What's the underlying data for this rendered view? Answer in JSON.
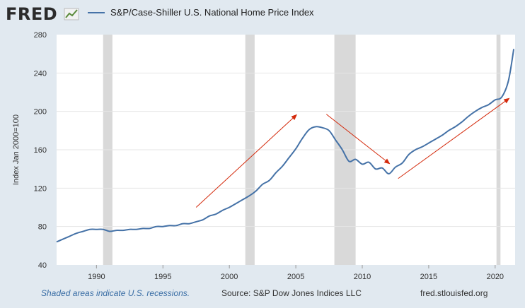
{
  "header": {
    "logo_text": "FRED",
    "legend_label": "S&P/Case-Shiller U.S. National Home Price Index"
  },
  "footer": {
    "recession_note": "Shaded areas indicate U.S. recessions.",
    "source": "Source: S&P Dow Jones Indices LLC",
    "site": "fred.stlouisfed.org"
  },
  "colors": {
    "series": "#4572a7",
    "recession": "#d9d9d9",
    "arrow": "#d42a0c",
    "plot_bg": "#ffffff",
    "page_bg": "#e1e9f0"
  },
  "chart_data": {
    "type": "line",
    "title": "",
    "xlabel": "",
    "ylabel": "Index Jan 2000=100",
    "xlim": [
      1987.0,
      2021.5
    ],
    "ylim": [
      40,
      280
    ],
    "xticks": [
      1990,
      1995,
      2000,
      2005,
      2010,
      2015,
      2020
    ],
    "yticks": [
      40,
      80,
      120,
      160,
      200,
      240,
      280
    ],
    "grid": "horizontal",
    "legend": "top",
    "recessions": [
      [
        1990.5,
        1991.2
      ],
      [
        2001.2,
        2001.9
      ],
      [
        2007.9,
        2009.5
      ],
      [
        2020.1,
        2020.4
      ]
    ],
    "annotations": [
      {
        "type": "arrow",
        "from": [
          1997.5,
          100
        ],
        "to": [
          2005.1,
          197
        ]
      },
      {
        "type": "arrow",
        "from": [
          2007.3,
          197
        ],
        "to": [
          2012.1,
          145
        ]
      },
      {
        "type": "arrow",
        "from": [
          2012.7,
          130
        ],
        "to": [
          2021.1,
          214
        ]
      }
    ],
    "series": [
      {
        "name": "S&P/Case-Shiller U.S. National Home Price Index",
        "x": [
          1987.0,
          1987.5,
          1988.0,
          1988.5,
          1989.0,
          1989.5,
          1990.0,
          1990.5,
          1991.0,
          1991.5,
          1992.0,
          1992.5,
          1993.0,
          1993.5,
          1994.0,
          1994.5,
          1995.0,
          1995.5,
          1996.0,
          1996.5,
          1997.0,
          1997.5,
          1998.0,
          1998.5,
          1999.0,
          1999.5,
          2000.0,
          2000.5,
          2001.0,
          2001.5,
          2002.0,
          2002.5,
          2003.0,
          2003.5,
          2004.0,
          2004.5,
          2005.0,
          2005.5,
          2006.0,
          2006.5,
          2007.0,
          2007.5,
          2008.0,
          2008.5,
          2009.0,
          2009.5,
          2010.0,
          2010.5,
          2011.0,
          2011.5,
          2012.0,
          2012.5,
          2013.0,
          2013.5,
          2014.0,
          2014.5,
          2015.0,
          2015.5,
          2016.0,
          2016.5,
          2017.0,
          2017.5,
          2018.0,
          2018.5,
          2019.0,
          2019.5,
          2020.0,
          2020.5,
          2021.0,
          2021.4
        ],
        "values": [
          64,
          67,
          70,
          73,
          75,
          77,
          77,
          77,
          75,
          76,
          76,
          77,
          77,
          78,
          78,
          80,
          80,
          81,
          81,
          83,
          83,
          85,
          87,
          91,
          93,
          97,
          100,
          104,
          108,
          112,
          117,
          124,
          128,
          136,
          143,
          152,
          161,
          172,
          181,
          184,
          183,
          180,
          170,
          160,
          148,
          150,
          145,
          147,
          140,
          141,
          135,
          142,
          146,
          155,
          160,
          163,
          167,
          171,
          175,
          180,
          184,
          189,
          195,
          200,
          204,
          207,
          212,
          215,
          232,
          265
        ]
      }
    ]
  }
}
